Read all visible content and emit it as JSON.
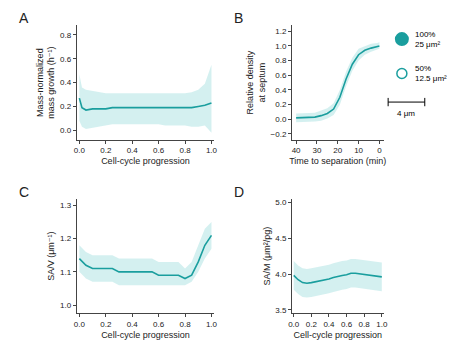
{
  "chart_data": [
    {
      "type": "line",
      "title": "A",
      "xlabel": "Cell-cycle progression",
      "ylabel": "Mass-normalized\nmass growth (h⁻¹)",
      "xlim": [
        -0.02,
        1.02
      ],
      "ylim": [
        -0.08,
        0.88
      ],
      "xticks": [
        {
          "value": 0.0,
          "label": "0.0"
        },
        0.2,
        0.4,
        0.6,
        0.8,
        {
          "value": 1.0,
          "label": "1.0"
        }
      ],
      "yticks": [
        {
          "value": 0.0,
          "label": "0.0"
        },
        0.2,
        0.4,
        0.6,
        0.8
      ],
      "grid": false,
      "x": [
        0.0,
        0.02,
        0.05,
        0.1,
        0.15,
        0.2,
        0.25,
        0.3,
        0.35,
        0.4,
        0.45,
        0.5,
        0.55,
        0.6,
        0.65,
        0.7,
        0.75,
        0.8,
        0.85,
        0.9,
        0.95,
        1.0
      ],
      "series": [
        {
          "type": "band",
          "color": "#a0dede",
          "lower": [
            0.08,
            0.03,
            0.01,
            0.02,
            0.03,
            0.04,
            0.05,
            0.05,
            0.05,
            0.05,
            0.05,
            0.05,
            0.05,
            0.05,
            0.04,
            0.04,
            0.04,
            0.04,
            0.03,
            0.03,
            0.04,
            -0.02
          ],
          "upper": [
            0.47,
            0.36,
            0.34,
            0.33,
            0.32,
            0.31,
            0.31,
            0.31,
            0.31,
            0.31,
            0.31,
            0.31,
            0.31,
            0.31,
            0.31,
            0.31,
            0.31,
            0.31,
            0.32,
            0.34,
            0.39,
            0.55
          ]
        },
        {
          "type": "line",
          "color": "#1a9e9e",
          "values": [
            0.27,
            0.19,
            0.17,
            0.18,
            0.18,
            0.18,
            0.19,
            0.19,
            0.19,
            0.19,
            0.19,
            0.19,
            0.19,
            0.19,
            0.19,
            0.19,
            0.19,
            0.19,
            0.19,
            0.2,
            0.21,
            0.23
          ]
        }
      ]
    },
    {
      "type": "line",
      "title": "B",
      "xlabel": "Time to separation (min)",
      "ylabel": "Relative density\nat septum",
      "xlim": [
        42,
        -2
      ],
      "ylim": [
        -0.28,
        1.28
      ],
      "xticks": [
        40,
        30,
        20,
        10,
        0
      ],
      "yticks": [
        {
          "value": -0.2,
          "label": "−0.2"
        },
        {
          "value": 0.0,
          "label": "0.0"
        },
        0.2,
        0.4,
        0.6,
        0.8,
        {
          "value": 1.0,
          "label": "1.0"
        },
        1.2
      ],
      "grid": false,
      "annotations": [
        "100%\n25 μm²",
        "50%\n12.5 μm²",
        "4 μm"
      ],
      "x": [
        40,
        37,
        34,
        31,
        28,
        25,
        22,
        19,
        16,
        13,
        10,
        7,
        4,
        1,
        0
      ],
      "series": [
        {
          "type": "band",
          "color": "#a0dede",
          "lower": [
            -0.04,
            -0.04,
            -0.04,
            -0.03,
            -0.02,
            0.01,
            0.06,
            0.2,
            0.45,
            0.66,
            0.8,
            0.88,
            0.92,
            0.95,
            0.96
          ],
          "upper": [
            0.08,
            0.08,
            0.08,
            0.09,
            0.12,
            0.15,
            0.22,
            0.4,
            0.65,
            0.84,
            0.96,
            1.0,
            1.03,
            1.04,
            1.05
          ]
        },
        {
          "type": "line",
          "color": "#1a9e9e",
          "values": [
            0.02,
            0.02,
            0.02,
            0.03,
            0.05,
            0.08,
            0.14,
            0.3,
            0.55,
            0.75,
            0.88,
            0.94,
            0.97,
            0.99,
            1.0
          ]
        }
      ]
    },
    {
      "type": "line",
      "title": "C",
      "xlabel": "Cell-cycle progression",
      "ylabel": "SA/V (μm⁻¹)",
      "xlim": [
        -0.02,
        1.02
      ],
      "ylim": [
        0.975,
        1.32
      ],
      "xticks": [
        {
          "value": 0.0,
          "label": "0.0"
        },
        0.2,
        0.4,
        0.6,
        0.8,
        {
          "value": 1.0,
          "label": "1.0"
        }
      ],
      "yticks": [
        {
          "value": 1.0,
          "label": "1.0"
        },
        1.1,
        1.2,
        1.3
      ],
      "grid": false,
      "x": [
        0.0,
        0.05,
        0.1,
        0.15,
        0.2,
        0.25,
        0.3,
        0.35,
        0.4,
        0.45,
        0.5,
        0.55,
        0.6,
        0.65,
        0.7,
        0.75,
        0.8,
        0.85,
        0.9,
        0.95,
        1.0
      ],
      "series": [
        {
          "type": "band",
          "color": "#a0dede",
          "lower": [
            1.1,
            1.08,
            1.07,
            1.07,
            1.07,
            1.07,
            1.06,
            1.06,
            1.06,
            1.06,
            1.06,
            1.06,
            1.06,
            1.06,
            1.06,
            1.06,
            1.06,
            1.07,
            1.1,
            1.14,
            1.17
          ],
          "upper": [
            1.18,
            1.16,
            1.15,
            1.15,
            1.15,
            1.15,
            1.14,
            1.14,
            1.14,
            1.14,
            1.14,
            1.14,
            1.13,
            1.13,
            1.13,
            1.13,
            1.11,
            1.13,
            1.18,
            1.23,
            1.25
          ]
        },
        {
          "type": "line",
          "color": "#1a9e9e",
          "values": [
            1.14,
            1.12,
            1.11,
            1.11,
            1.11,
            1.11,
            1.1,
            1.1,
            1.1,
            1.1,
            1.1,
            1.1,
            1.09,
            1.09,
            1.09,
            1.09,
            1.08,
            1.09,
            1.13,
            1.18,
            1.21
          ]
        }
      ]
    },
    {
      "type": "line",
      "title": "D",
      "xlabel": "Cell-cycle progression",
      "ylabel": "SA/M (μm²/pg)",
      "xlim": [
        -0.02,
        1.02
      ],
      "ylim": [
        3.45,
        5.05
      ],
      "xticks": [
        {
          "value": 0.0,
          "label": "0.0"
        },
        0.2,
        0.4,
        0.6,
        0.8,
        {
          "value": 1.0,
          "label": "1.0"
        }
      ],
      "yticks": [
        3.5,
        {
          "value": 4.0,
          "label": "4.0"
        },
        4.5,
        {
          "value": 5.0,
          "label": "5.0"
        }
      ],
      "grid": false,
      "x": [
        0.0,
        0.05,
        0.1,
        0.15,
        0.2,
        0.25,
        0.3,
        0.35,
        0.4,
        0.45,
        0.5,
        0.55,
        0.6,
        0.65,
        0.7,
        0.75,
        0.8,
        0.85,
        0.9,
        0.95,
        1.0
      ],
      "series": [
        {
          "type": "band",
          "color": "#a0dede",
          "lower": [
            3.78,
            3.72,
            3.68,
            3.67,
            3.68,
            3.69,
            3.7,
            3.71,
            3.73,
            3.75,
            3.77,
            3.78,
            3.79,
            3.81,
            3.81,
            3.8,
            3.79,
            3.78,
            3.77,
            3.76,
            3.76
          ],
          "upper": [
            4.18,
            4.12,
            4.08,
            4.07,
            4.08,
            4.09,
            4.1,
            4.11,
            4.13,
            4.15,
            4.17,
            4.18,
            4.19,
            4.21,
            4.21,
            4.2,
            4.19,
            4.18,
            4.17,
            4.16,
            4.16
          ]
        },
        {
          "type": "line",
          "color": "#1a9e9e",
          "values": [
            3.98,
            3.92,
            3.88,
            3.87,
            3.88,
            3.89,
            3.9,
            3.91,
            3.93,
            3.95,
            3.97,
            3.98,
            3.99,
            4.01,
            4.01,
            4.0,
            3.99,
            3.98,
            3.97,
            3.96,
            3.96
          ]
        }
      ]
    }
  ]
}
